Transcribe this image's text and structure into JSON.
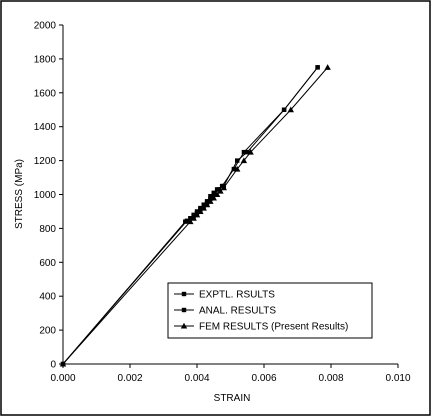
{
  "chart_data": {
    "type": "line",
    "xlabel": "STRAIN",
    "ylabel": "STRESS (MPa)",
    "xlim": [
      0,
      0.01
    ],
    "ylim": [
      0,
      2000
    ],
    "x_ticks": [
      "0.000",
      "0.002",
      "0.004",
      "0.006",
      "0.008",
      "0.010"
    ],
    "y_ticks": [
      "0",
      "200",
      "400",
      "600",
      "800",
      "1000",
      "1200",
      "1400",
      "1600",
      "1800",
      "2000"
    ],
    "legend_position": "bottom-right",
    "colors": {
      "line": "#000000",
      "axes": "#000000",
      "background": "#ffffff"
    },
    "series": [
      {
        "name": "EXPTL. RSULTS",
        "marker": "square",
        "points": [
          [
            0,
            0
          ],
          [
            0.00365,
            840
          ],
          [
            0.0038,
            860
          ],
          [
            0.0039,
            880
          ],
          [
            0.004,
            900
          ],
          [
            0.0041,
            920
          ],
          [
            0.0042,
            940
          ],
          [
            0.0043,
            960
          ],
          [
            0.0044,
            990
          ],
          [
            0.0045,
            1010
          ],
          [
            0.0046,
            1030
          ],
          [
            0.00475,
            1050
          ],
          [
            0.0051,
            1150
          ],
          [
            0.0054,
            1250
          ],
          [
            0.0066,
            1500
          ],
          [
            0.0076,
            1750
          ]
        ]
      },
      {
        "name": "ANAL. RESULTS",
        "marker": "square",
        "points": [
          [
            0,
            0
          ],
          [
            0.0037,
            845
          ],
          [
            0.0039,
            870
          ],
          [
            0.004,
            890
          ],
          [
            0.0041,
            910
          ],
          [
            0.0042,
            930
          ],
          [
            0.0043,
            950
          ],
          [
            0.0044,
            975
          ],
          [
            0.0045,
            1000
          ],
          [
            0.00465,
            1030
          ],
          [
            0.0048,
            1050
          ],
          [
            0.0052,
            1200
          ],
          [
            0.0055,
            1250
          ],
          [
            0.0066,
            1500
          ],
          [
            0.0076,
            1750
          ]
        ]
      },
      {
        "name": "FEM RESULTS (Present Results)",
        "marker": "triangle",
        "points": [
          [
            0,
            0
          ],
          [
            0.0038,
            840
          ],
          [
            0.0039,
            860
          ],
          [
            0.004,
            880
          ],
          [
            0.0041,
            900
          ],
          [
            0.0042,
            920
          ],
          [
            0.0043,
            940
          ],
          [
            0.0044,
            960
          ],
          [
            0.0045,
            980
          ],
          [
            0.0046,
            1000
          ],
          [
            0.0047,
            1020
          ],
          [
            0.0048,
            1040
          ],
          [
            0.0052,
            1150
          ],
          [
            0.0054,
            1200
          ],
          [
            0.0056,
            1250
          ],
          [
            0.0068,
            1500
          ],
          [
            0.0079,
            1750
          ]
        ]
      }
    ]
  }
}
